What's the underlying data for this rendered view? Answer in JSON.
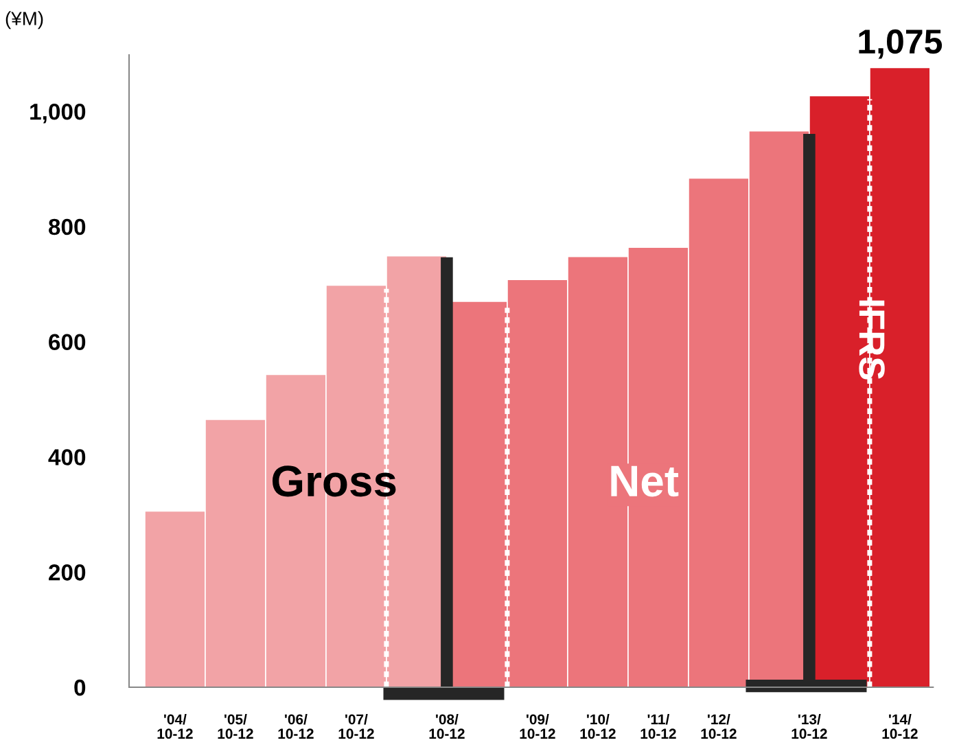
{
  "chart_data": {
    "type": "bar",
    "ylabel": "(¥M)",
    "categories": [
      "'04/\n10-12",
      "'05/\n10-12",
      "'06/\n10-12",
      "'07/\n10-12",
      "'08/\n10-12",
      null,
      "'09/\n10-12",
      "'10/\n10-12",
      "'11/\n10-12",
      "'12/\n10-12",
      "'13/\n10-12",
      null,
      "'14/\n10-12"
    ],
    "values": [
      305,
      464,
      542,
      697,
      748,
      669,
      707,
      747,
      763,
      883,
      965,
      1026,
      1075
    ],
    "colors": [
      "#f2a3a6",
      "#f2a3a6",
      "#f2a3a6",
      "#f2a3a6",
      "#f2a3a6",
      "#ec757b",
      "#ec757b",
      "#ec757b",
      "#ec757b",
      "#ec757b",
      "#ec757b",
      "#d9202a",
      "#d9202a"
    ],
    "value_labels": [
      null,
      null,
      null,
      null,
      null,
      null,
      null,
      null,
      null,
      null,
      null,
      null,
      "1,075"
    ],
    "ylim": [
      0,
      1098
    ],
    "yticks": [
      0,
      200,
      400,
      600,
      800,
      {
        "value": 1000,
        "label": "1,000"
      }
    ],
    "annotations": [
      "Gross",
      "Net",
      "IFRS"
    ],
    "grid": false,
    "legend": false
  }
}
